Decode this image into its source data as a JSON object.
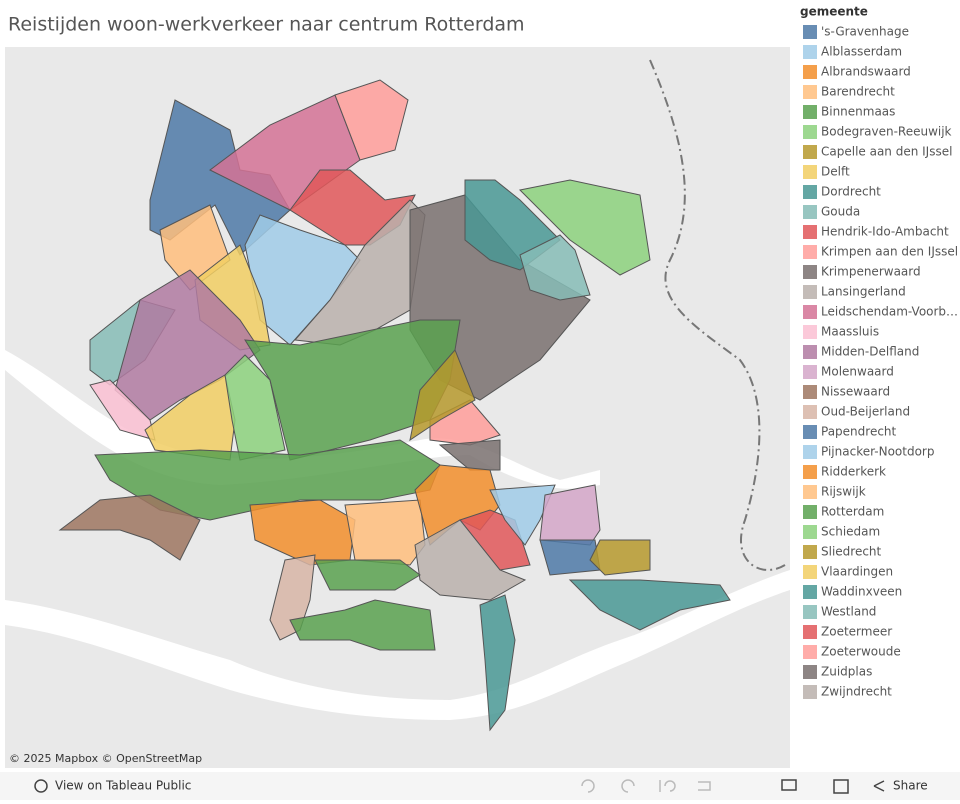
{
  "header": {
    "title": "Reistijden woon-werkverkeer naar centrum Rotterdam"
  },
  "map": {
    "attribution": "© 2025 Mapbox © OpenStreetMap"
  },
  "legend": {
    "title": "gemeente",
    "items": [
      {
        "label": "'s-Gravenhage",
        "color": "#4e79a7"
      },
      {
        "label": "Alblasserdam",
        "color": "#a0cbe8"
      },
      {
        "label": "Albrandswaard",
        "color": "#f28e2b"
      },
      {
        "label": "Barendrecht",
        "color": "#ffbe7d"
      },
      {
        "label": "Binnenmaas",
        "color": "#59a14f"
      },
      {
        "label": "Bodegraven-Reeuwijk",
        "color": "#8cd17d"
      },
      {
        "label": "Capelle aan den IJssel",
        "color": "#b6992d"
      },
      {
        "label": "Delft",
        "color": "#f1ce63"
      },
      {
        "label": "Dordrecht",
        "color": "#499894"
      },
      {
        "label": "Gouda",
        "color": "#86bcb6"
      },
      {
        "label": "Hendrik-Ido-Ambacht",
        "color": "#e15759"
      },
      {
        "label": "Krimpen aan den IJssel",
        "color": "#ff9d9a"
      },
      {
        "label": "Krimpenerwaard",
        "color": "#79706e"
      },
      {
        "label": "Lansingerland",
        "color": "#bab0ac"
      },
      {
        "label": "Leidschendam-Voorb…",
        "color": "#d37295"
      },
      {
        "label": "Maassluis",
        "color": "#fabfd2"
      },
      {
        "label": "Midden-Delfland",
        "color": "#b07aa1"
      },
      {
        "label": "Molenwaard",
        "color": "#d4a6c8"
      },
      {
        "label": "Nissewaard",
        "color": "#9d7660"
      },
      {
        "label": "Oud-Beijerland",
        "color": "#d7b5a6"
      },
      {
        "label": "Papendrecht",
        "color": "#4e79a7"
      },
      {
        "label": "Pijnacker-Nootdorp",
        "color": "#a0cbe8"
      },
      {
        "label": "Ridderkerk",
        "color": "#f28e2b"
      },
      {
        "label": "Rijswijk",
        "color": "#ffbe7d"
      },
      {
        "label": "Rotterdam",
        "color": "#59a14f"
      },
      {
        "label": "Schiedam",
        "color": "#8cd17d"
      },
      {
        "label": "Sliedrecht",
        "color": "#b6992d"
      },
      {
        "label": "Vlaardingen",
        "color": "#f1ce63"
      },
      {
        "label": "Waddinxveen",
        "color": "#499894"
      },
      {
        "label": "Westland",
        "color": "#86bcb6"
      },
      {
        "label": "Zoetermeer",
        "color": "#e15759"
      },
      {
        "label": "Zoeterwoude",
        "color": "#ff9d9a"
      },
      {
        "label": "Zuidplas",
        "color": "#79706e"
      },
      {
        "label": "Zwijndrecht",
        "color": "#bab0ac"
      }
    ]
  },
  "toolbar": {
    "view": "View on Tableau Public",
    "share": "Share"
  }
}
